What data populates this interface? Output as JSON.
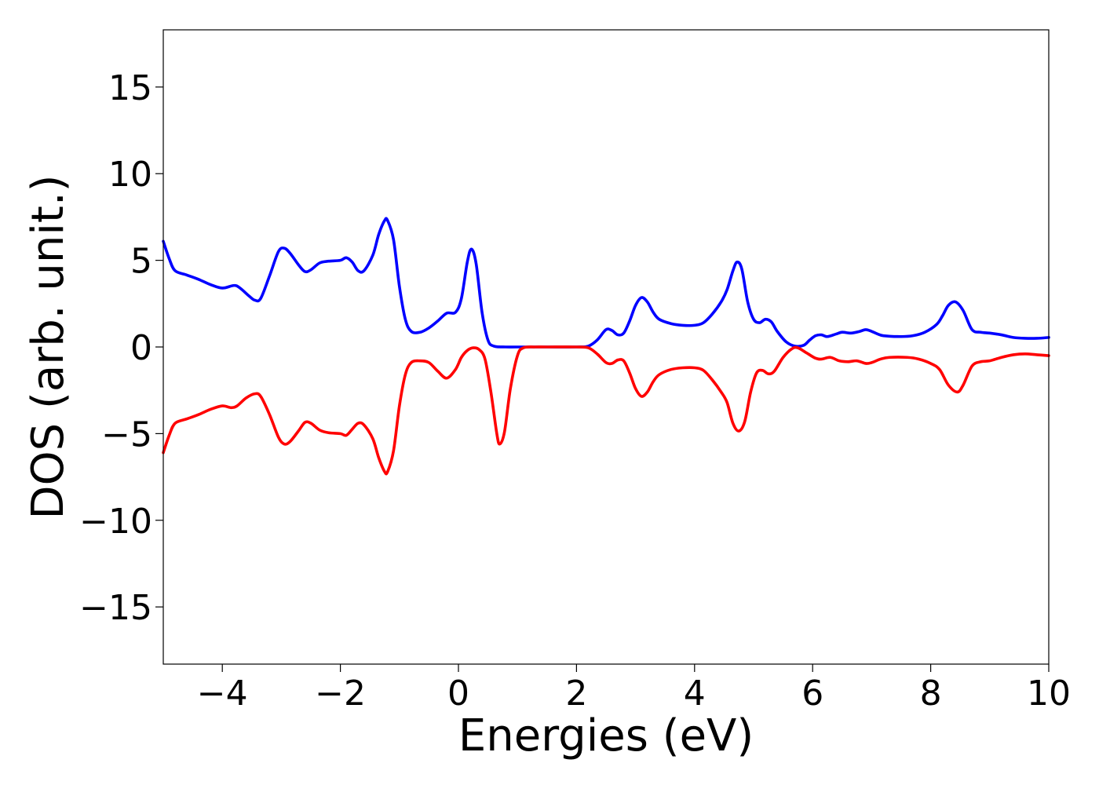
{
  "chart_data": {
    "type": "line",
    "title": "",
    "xlabel": "Energies (eV)",
    "ylabel": "DOS (arb. unit.)",
    "xlim": [
      -5,
      10
    ],
    "ylim": [
      -18.3,
      18.3
    ],
    "grid": false,
    "x_ticks": [
      {
        "value": -4,
        "label": "−4"
      },
      {
        "value": -2,
        "label": "−2"
      },
      {
        "value": 0,
        "label": "0"
      },
      {
        "value": 2,
        "label": "2"
      },
      {
        "value": 4,
        "label": "4"
      },
      {
        "value": 6,
        "label": "6"
      },
      {
        "value": 8,
        "label": "8"
      },
      {
        "value": 10,
        "label": "10"
      }
    ],
    "y_ticks": [
      {
        "value": -15,
        "label": "−15"
      },
      {
        "value": -10,
        "label": "−10"
      },
      {
        "value": -5,
        "label": "−5"
      },
      {
        "value": 0,
        "label": "0"
      },
      {
        "value": 5,
        "label": "5"
      },
      {
        "value": 10,
        "label": "10"
      },
      {
        "value": 15,
        "label": "15"
      }
    ],
    "series": [
      {
        "color": "#0000ff",
        "points": [
          [
            -5.0,
            6.1
          ],
          [
            -4.9,
            5.1
          ],
          [
            -4.8,
            4.4
          ],
          [
            -4.6,
            4.15
          ],
          [
            -4.4,
            3.9
          ],
          [
            -4.2,
            3.6
          ],
          [
            -4.0,
            3.4
          ],
          [
            -3.8,
            3.55
          ],
          [
            -3.7,
            3.4
          ],
          [
            -3.55,
            2.95
          ],
          [
            -3.45,
            2.7
          ],
          [
            -3.35,
            2.8
          ],
          [
            -3.2,
            4.1
          ],
          [
            -3.05,
            5.5
          ],
          [
            -2.95,
            5.7
          ],
          [
            -2.85,
            5.4
          ],
          [
            -2.7,
            4.7
          ],
          [
            -2.6,
            4.35
          ],
          [
            -2.5,
            4.45
          ],
          [
            -2.35,
            4.85
          ],
          [
            -2.2,
            4.95
          ],
          [
            -2.0,
            5.0
          ],
          [
            -1.9,
            5.15
          ],
          [
            -1.8,
            4.9
          ],
          [
            -1.7,
            4.4
          ],
          [
            -1.6,
            4.4
          ],
          [
            -1.45,
            5.3
          ],
          [
            -1.35,
            6.5
          ],
          [
            -1.25,
            7.3
          ],
          [
            -1.2,
            7.3
          ],
          [
            -1.1,
            6.2
          ],
          [
            -1.0,
            3.5
          ],
          [
            -0.9,
            1.6
          ],
          [
            -0.8,
            0.9
          ],
          [
            -0.65,
            0.85
          ],
          [
            -0.5,
            1.1
          ],
          [
            -0.35,
            1.5
          ],
          [
            -0.2,
            1.95
          ],
          [
            -0.05,
            2.0
          ],
          [
            0.05,
            2.8
          ],
          [
            0.15,
            4.9
          ],
          [
            0.22,
            5.65
          ],
          [
            0.3,
            4.8
          ],
          [
            0.4,
            2.0
          ],
          [
            0.5,
            0.4
          ],
          [
            0.6,
            0.05
          ],
          [
            0.8,
            0.0
          ],
          [
            1.0,
            0.0
          ],
          [
            1.5,
            0.0
          ],
          [
            2.0,
            0.0
          ],
          [
            2.2,
            0.05
          ],
          [
            2.35,
            0.4
          ],
          [
            2.5,
            1.0
          ],
          [
            2.6,
            0.95
          ],
          [
            2.7,
            0.7
          ],
          [
            2.8,
            0.8
          ],
          [
            2.9,
            1.5
          ],
          [
            3.0,
            2.4
          ],
          [
            3.1,
            2.85
          ],
          [
            3.2,
            2.6
          ],
          [
            3.3,
            2.0
          ],
          [
            3.4,
            1.6
          ],
          [
            3.6,
            1.35
          ],
          [
            3.8,
            1.25
          ],
          [
            4.0,
            1.25
          ],
          [
            4.15,
            1.4
          ],
          [
            4.3,
            1.9
          ],
          [
            4.45,
            2.6
          ],
          [
            4.55,
            3.3
          ],
          [
            4.65,
            4.4
          ],
          [
            4.72,
            4.9
          ],
          [
            4.8,
            4.5
          ],
          [
            4.9,
            2.6
          ],
          [
            5.0,
            1.6
          ],
          [
            5.1,
            1.4
          ],
          [
            5.2,
            1.6
          ],
          [
            5.3,
            1.45
          ],
          [
            5.4,
            0.9
          ],
          [
            5.55,
            0.3
          ],
          [
            5.7,
            0.05
          ],
          [
            5.85,
            0.1
          ],
          [
            5.95,
            0.4
          ],
          [
            6.05,
            0.65
          ],
          [
            6.15,
            0.7
          ],
          [
            6.25,
            0.6
          ],
          [
            6.4,
            0.75
          ],
          [
            6.5,
            0.85
          ],
          [
            6.65,
            0.8
          ],
          [
            6.8,
            0.9
          ],
          [
            6.9,
            1.0
          ],
          [
            7.0,
            0.9
          ],
          [
            7.1,
            0.75
          ],
          [
            7.2,
            0.65
          ],
          [
            7.5,
            0.6
          ],
          [
            7.7,
            0.65
          ],
          [
            7.9,
            0.85
          ],
          [
            8.1,
            1.3
          ],
          [
            8.2,
            1.8
          ],
          [
            8.3,
            2.4
          ],
          [
            8.42,
            2.6
          ],
          [
            8.55,
            2.1
          ],
          [
            8.7,
            1.0
          ],
          [
            8.85,
            0.85
          ],
          [
            9.0,
            0.8
          ],
          [
            9.2,
            0.7
          ],
          [
            9.4,
            0.55
          ],
          [
            9.6,
            0.5
          ],
          [
            9.8,
            0.5
          ],
          [
            10.0,
            0.55
          ]
        ]
      },
      {
        "color": "#ff0000",
        "points": [
          [
            -5.0,
            -6.1
          ],
          [
            -4.9,
            -5.1
          ],
          [
            -4.8,
            -4.4
          ],
          [
            -4.6,
            -4.15
          ],
          [
            -4.4,
            -3.9
          ],
          [
            -4.2,
            -3.6
          ],
          [
            -4.0,
            -3.4
          ],
          [
            -3.85,
            -3.5
          ],
          [
            -3.75,
            -3.4
          ],
          [
            -3.6,
            -2.95
          ],
          [
            -3.45,
            -2.7
          ],
          [
            -3.35,
            -2.85
          ],
          [
            -3.2,
            -3.9
          ],
          [
            -3.05,
            -5.2
          ],
          [
            -2.95,
            -5.6
          ],
          [
            -2.85,
            -5.45
          ],
          [
            -2.7,
            -4.8
          ],
          [
            -2.6,
            -4.35
          ],
          [
            -2.5,
            -4.4
          ],
          [
            -2.35,
            -4.8
          ],
          [
            -2.2,
            -4.95
          ],
          [
            -2.0,
            -5.0
          ],
          [
            -1.9,
            -5.1
          ],
          [
            -1.8,
            -4.75
          ],
          [
            -1.7,
            -4.4
          ],
          [
            -1.6,
            -4.5
          ],
          [
            -1.45,
            -5.3
          ],
          [
            -1.35,
            -6.4
          ],
          [
            -1.25,
            -7.2
          ],
          [
            -1.2,
            -7.2
          ],
          [
            -1.1,
            -6.0
          ],
          [
            -1.0,
            -3.4
          ],
          [
            -0.9,
            -1.6
          ],
          [
            -0.8,
            -0.9
          ],
          [
            -0.65,
            -0.8
          ],
          [
            -0.5,
            -0.9
          ],
          [
            -0.35,
            -1.4
          ],
          [
            -0.2,
            -1.8
          ],
          [
            -0.05,
            -1.3
          ],
          [
            0.05,
            -0.6
          ],
          [
            0.15,
            -0.2
          ],
          [
            0.25,
            -0.05
          ],
          [
            0.35,
            -0.15
          ],
          [
            0.45,
            -0.7
          ],
          [
            0.55,
            -2.6
          ],
          [
            0.65,
            -5.0
          ],
          [
            0.7,
            -5.6
          ],
          [
            0.78,
            -4.9
          ],
          [
            0.88,
            -2.4
          ],
          [
            1.0,
            -0.5
          ],
          [
            1.1,
            -0.05
          ],
          [
            1.3,
            0.0
          ],
          [
            1.5,
            0.0
          ],
          [
            2.0,
            0.0
          ],
          [
            2.2,
            -0.05
          ],
          [
            2.35,
            -0.4
          ],
          [
            2.5,
            -0.9
          ],
          [
            2.6,
            -0.95
          ],
          [
            2.7,
            -0.75
          ],
          [
            2.8,
            -0.8
          ],
          [
            2.9,
            -1.5
          ],
          [
            3.0,
            -2.4
          ],
          [
            3.1,
            -2.85
          ],
          [
            3.2,
            -2.6
          ],
          [
            3.3,
            -2.0
          ],
          [
            3.4,
            -1.6
          ],
          [
            3.6,
            -1.3
          ],
          [
            3.8,
            -1.2
          ],
          [
            4.0,
            -1.2
          ],
          [
            4.15,
            -1.35
          ],
          [
            4.3,
            -1.9
          ],
          [
            4.45,
            -2.6
          ],
          [
            4.55,
            -3.2
          ],
          [
            4.65,
            -4.4
          ],
          [
            4.75,
            -4.85
          ],
          [
            4.85,
            -4.3
          ],
          [
            4.95,
            -2.6
          ],
          [
            5.05,
            -1.5
          ],
          [
            5.15,
            -1.35
          ],
          [
            5.25,
            -1.55
          ],
          [
            5.35,
            -1.4
          ],
          [
            5.5,
            -0.6
          ],
          [
            5.65,
            -0.1
          ],
          [
            5.75,
            -0.05
          ],
          [
            5.9,
            -0.35
          ],
          [
            6.05,
            -0.65
          ],
          [
            6.15,
            -0.7
          ],
          [
            6.3,
            -0.6
          ],
          [
            6.45,
            -0.8
          ],
          [
            6.6,
            -0.85
          ],
          [
            6.75,
            -0.8
          ],
          [
            6.9,
            -0.95
          ],
          [
            7.0,
            -0.9
          ],
          [
            7.15,
            -0.7
          ],
          [
            7.3,
            -0.6
          ],
          [
            7.6,
            -0.6
          ],
          [
            7.8,
            -0.7
          ],
          [
            8.0,
            -0.95
          ],
          [
            8.15,
            -1.3
          ],
          [
            8.3,
            -2.2
          ],
          [
            8.45,
            -2.6
          ],
          [
            8.55,
            -2.2
          ],
          [
            8.7,
            -1.1
          ],
          [
            8.85,
            -0.85
          ],
          [
            9.0,
            -0.8
          ],
          [
            9.2,
            -0.6
          ],
          [
            9.4,
            -0.45
          ],
          [
            9.6,
            -0.4
          ],
          [
            9.8,
            -0.45
          ],
          [
            10.0,
            -0.5
          ]
        ]
      }
    ]
  }
}
